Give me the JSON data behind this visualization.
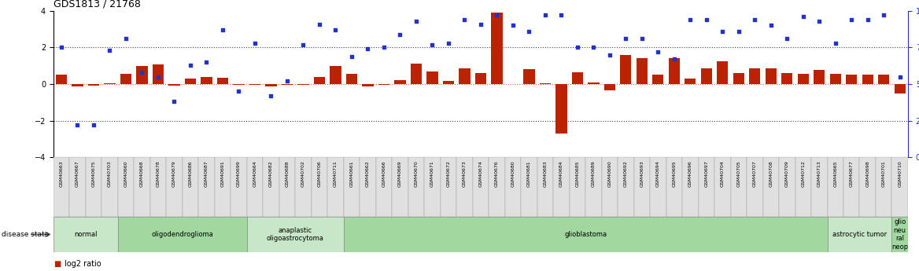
{
  "title": "GDS1813 / 21768",
  "samples": [
    "GSM40663",
    "GSM40667",
    "GSM40675",
    "GSM40703",
    "GSM40660",
    "GSM40668",
    "GSM40678",
    "GSM40679",
    "GSM40686",
    "GSM40687",
    "GSM40691",
    "GSM40699",
    "GSM40664",
    "GSM40682",
    "GSM40688",
    "GSM40702",
    "GSM40706",
    "GSM40711",
    "GSM40661",
    "GSM40662",
    "GSM40666",
    "GSM40669",
    "GSM40670",
    "GSM40671",
    "GSM40672",
    "GSM40673",
    "GSM40674",
    "GSM40676",
    "GSM40680",
    "GSM40681",
    "GSM40683",
    "GSM40684",
    "GSM40685",
    "GSM40689",
    "GSM40690",
    "GSM40692",
    "GSM40693",
    "GSM40694",
    "GSM40695",
    "GSM40696",
    "GSM40697",
    "GSM40704",
    "GSM40705",
    "GSM40707",
    "GSM40708",
    "GSM40709",
    "GSM40712",
    "GSM40713",
    "GSM40665",
    "GSM40677",
    "GSM40698",
    "GSM40701",
    "GSM40710"
  ],
  "log2_ratio": [
    0.5,
    -0.15,
    -0.1,
    0.05,
    0.55,
    1.0,
    1.05,
    -0.1,
    0.3,
    0.4,
    0.35,
    -0.05,
    -0.05,
    -0.15,
    -0.05,
    -0.05,
    0.4,
    1.0,
    0.55,
    -0.15,
    -0.05,
    0.2,
    1.1,
    0.7,
    0.15,
    0.85,
    0.6,
    3.9,
    0.0,
    0.8,
    0.05,
    -2.7,
    0.65,
    0.1,
    -0.35,
    1.6,
    1.4,
    0.5,
    1.4,
    0.3,
    0.85,
    1.25,
    0.6,
    0.85,
    0.85,
    0.6,
    0.55,
    0.75,
    0.55,
    0.5,
    0.5,
    0.5,
    -0.5
  ],
  "percentile": [
    75,
    22,
    22,
    73,
    81,
    58,
    55,
    38,
    63,
    65,
    87,
    45,
    78,
    42,
    52,
    77,
    91,
    87,
    69,
    74,
    75,
    84,
    93,
    77,
    78,
    94,
    91,
    97,
    90,
    86,
    97,
    97,
    75,
    75,
    70,
    81,
    81,
    72,
    67,
    94,
    94,
    86,
    86,
    94,
    90,
    81,
    96,
    93,
    78,
    94,
    94,
    97,
    55
  ],
  "disease_groups": [
    {
      "label": "normal",
      "start": 0,
      "end": 3,
      "color": "#c8e6c8"
    },
    {
      "label": "oligodendroglioma",
      "start": 4,
      "end": 11,
      "color": "#a0d8a0"
    },
    {
      "label": "anaplastic\noligoastrocytoma",
      "start": 12,
      "end": 17,
      "color": "#c8e6c8"
    },
    {
      "label": "glioblastoma",
      "start": 18,
      "end": 47,
      "color": "#a0d8a0"
    },
    {
      "label": "astrocytic tumor",
      "start": 48,
      "end": 51,
      "color": "#c8e6c8"
    },
    {
      "label": "glio\nneu\nral\nneop",
      "start": 52,
      "end": 52,
      "color": "#a0d8a0"
    }
  ],
  "bar_color": "#bb2200",
  "dot_color": "#2233cc",
  "ylim_left": [
    -4,
    4
  ],
  "ylim_right": [
    0,
    100
  ],
  "yticks_left": [
    -4,
    -2,
    0,
    2,
    4
  ],
  "yticks_right": [
    0,
    25,
    50,
    75,
    100
  ],
  "bar_width": 0.7,
  "title_fontsize": 9,
  "label_fontsize": 4.5,
  "group_fontsize": 6,
  "legend_fontsize": 7
}
